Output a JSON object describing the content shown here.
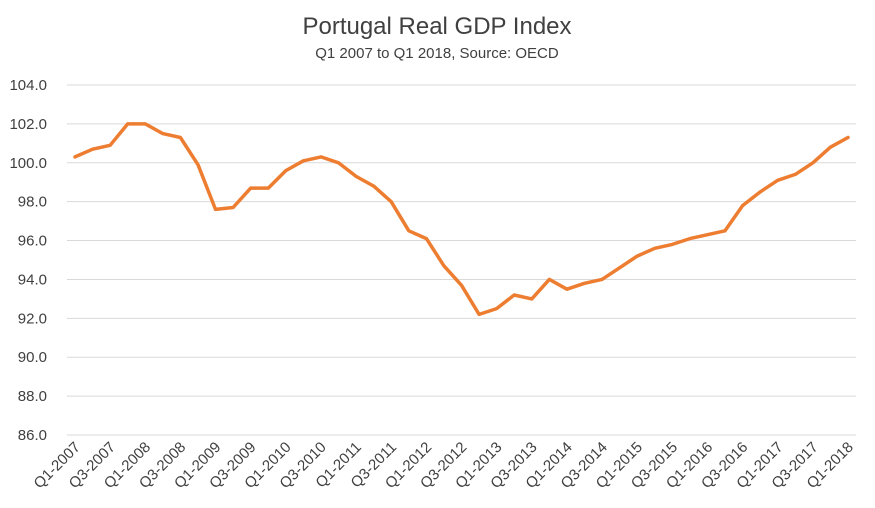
{
  "chart_data": {
    "type": "line",
    "title": "Portugal Real GDP Index",
    "subtitle": "Q1 2007 to Q1 2018, Source: OECD",
    "xlabel": "",
    "ylabel": "",
    "ylim": [
      86,
      104
    ],
    "yticks": [
      "86.0",
      "88.0",
      "90.0",
      "92.0",
      "94.0",
      "96.0",
      "98.0",
      "100.0",
      "102.0",
      "104.0"
    ],
    "grid": true,
    "legend": "none",
    "line_color": "#ED7D31",
    "x": [
      "Q1-2007",
      "Q2-2007",
      "Q3-2007",
      "Q4-2007",
      "Q1-2008",
      "Q2-2008",
      "Q3-2008",
      "Q4-2008",
      "Q1-2009",
      "Q2-2009",
      "Q3-2009",
      "Q4-2009",
      "Q1-2010",
      "Q2-2010",
      "Q3-2010",
      "Q4-2010",
      "Q1-2011",
      "Q2-2011",
      "Q3-2011",
      "Q4-2011",
      "Q1-2012",
      "Q2-2012",
      "Q3-2012",
      "Q4-2012",
      "Q1-2013",
      "Q2-2013",
      "Q3-2013",
      "Q4-2013",
      "Q1-2014",
      "Q2-2014",
      "Q3-2014",
      "Q4-2014",
      "Q1-2015",
      "Q2-2015",
      "Q3-2015",
      "Q4-2015",
      "Q1-2016",
      "Q2-2016",
      "Q3-2016",
      "Q4-2016",
      "Q1-2017",
      "Q2-2017",
      "Q3-2017",
      "Q4-2017",
      "Q1-2018"
    ],
    "xtick_labels": [
      "Q1-2007",
      "Q3-2007",
      "Q1-2008",
      "Q3-2008",
      "Q1-2009",
      "Q3-2009",
      "Q1-2010",
      "Q3-2010",
      "Q1-2011",
      "Q3-2011",
      "Q1-2012",
      "Q3-2012",
      "Q1-2013",
      "Q3-2013",
      "Q1-2014",
      "Q3-2014",
      "Q1-2015",
      "Q3-2015",
      "Q1-2016",
      "Q3-2016",
      "Q1-2017",
      "Q3-2017",
      "Q1-2018"
    ],
    "values": [
      100.3,
      100.7,
      100.9,
      102.0,
      102.0,
      101.5,
      101.3,
      99.9,
      97.6,
      97.7,
      98.7,
      98.7,
      99.6,
      100.1,
      100.3,
      100.0,
      99.3,
      98.8,
      98.0,
      96.5,
      96.1,
      94.7,
      93.7,
      92.2,
      92.5,
      93.2,
      93.0,
      94.0,
      93.5,
      93.8,
      94.0,
      94.6,
      95.2,
      95.6,
      95.8,
      96.1,
      96.3,
      96.5,
      97.8,
      98.5,
      99.1,
      99.4,
      100.0,
      100.8,
      101.3
    ]
  }
}
